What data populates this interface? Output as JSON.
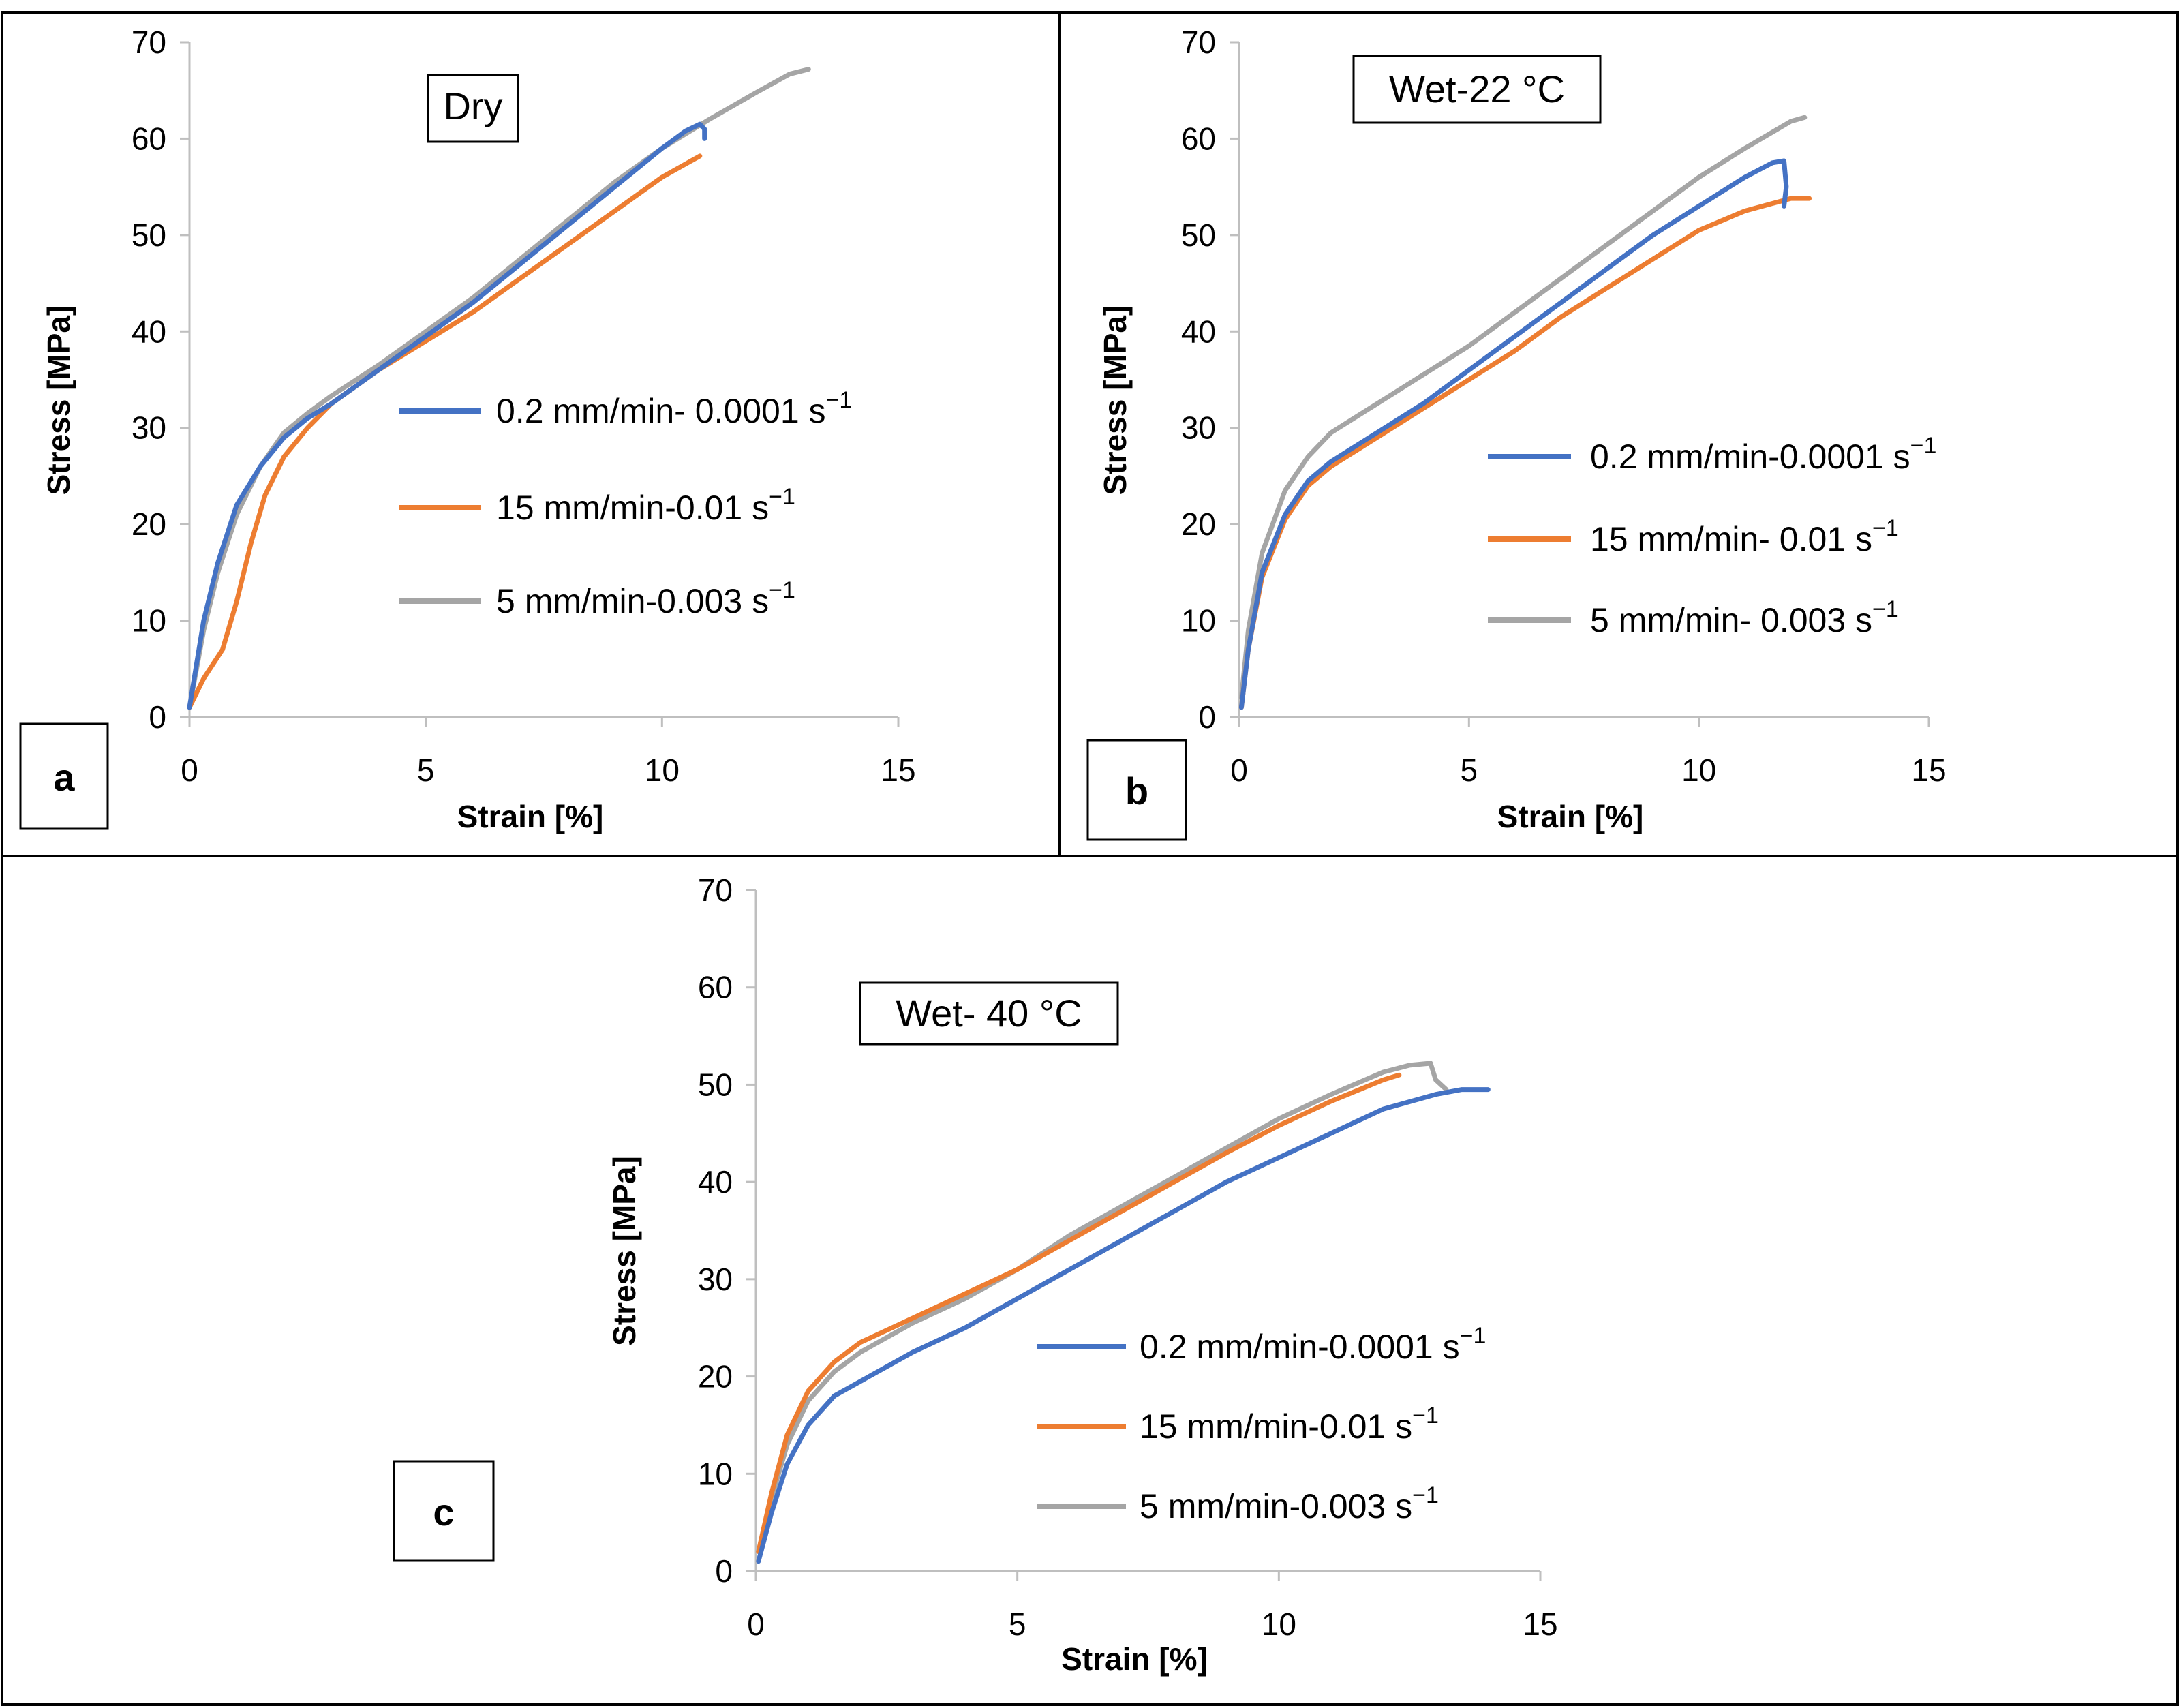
{
  "figure": {
    "panels": [
      {
        "letter": "a",
        "condition": "Dry",
        "legend": [
          {
            "label": "0.2 mm/min- 0.0001 s",
            "sup": "−1"
          },
          {
            "label": "15 mm/min-0.01 s",
            "sup": "−1"
          },
          {
            "label": "5 mm/min-0.003 s",
            "sup": "−1"
          }
        ]
      },
      {
        "letter": "b",
        "condition": "Wet-22 °C",
        "legend": [
          {
            "label": "0.2 mm/min-0.0001 s",
            "sup": "−1"
          },
          {
            "label": "15 mm/min- 0.01 s",
            "sup": "−1"
          },
          {
            "label": "5 mm/min- 0.003 s",
            "sup": "−1"
          }
        ]
      },
      {
        "letter": "c",
        "condition": "Wet- 40 °C",
        "legend": [
          {
            "label": "0.2 mm/min-0.0001 s",
            "sup": "−1"
          },
          {
            "label": "15 mm/min-0.01 s",
            "sup": "−1"
          },
          {
            "label": "5 mm/min-0.003 s",
            "sup": "−1"
          }
        ]
      }
    ]
  },
  "colors": {
    "blue": "#4472C4",
    "orange": "#ED7D31",
    "gray": "#A5A5A5"
  },
  "chart_data": [
    {
      "type": "line",
      "title": "Dry",
      "xlabel": "Strain [%]",
      "ylabel": "Stress [MPa]",
      "xlim": [
        0,
        15
      ],
      "ylim": [
        0,
        70
      ],
      "xticks": [
        0,
        5,
        10,
        15
      ],
      "yticks": [
        0,
        10,
        20,
        30,
        40,
        50,
        60,
        70
      ],
      "series": [
        {
          "name": "0.2 mm/min- 0.0001 s−1",
          "color": "#4472C4",
          "x": [
            0,
            0.3,
            0.6,
            1.0,
            1.5,
            2.0,
            2.5,
            3.0,
            4.0,
            5.0,
            6.0,
            7.0,
            8.0,
            9.0,
            10.0,
            10.5,
            10.8,
            10.9,
            10.9
          ],
          "y": [
            1,
            10,
            16,
            22,
            26,
            29,
            31,
            32.5,
            36,
            39.5,
            43,
            47,
            51,
            55,
            59,
            60.8,
            61.5,
            61,
            60
          ]
        },
        {
          "name": "15 mm/min-0.01 s−1",
          "color": "#ED7D31",
          "x": [
            0,
            0.3,
            0.7,
            1.0,
            1.3,
            1.6,
            2.0,
            2.5,
            3.0,
            4.0,
            5.0,
            6.0,
            7.0,
            8.0,
            9.0,
            10.0,
            10.8
          ],
          "y": [
            1,
            4,
            7,
            12,
            18,
            23,
            27,
            30,
            32.5,
            36,
            39,
            42,
            45.5,
            49,
            52.5,
            56,
            58.2
          ]
        },
        {
          "name": "5 mm/min-0.003 s−1",
          "color": "#A5A5A5",
          "x": [
            0,
            0.3,
            0.6,
            1.0,
            1.5,
            2.0,
            2.5,
            3.0,
            4.0,
            5.0,
            6.0,
            7.0,
            8.0,
            9.0,
            10.0,
            11.0,
            12.0,
            12.7,
            13.1
          ],
          "y": [
            1,
            9,
            15,
            21,
            26,
            29.5,
            31.5,
            33.3,
            36.5,
            40,
            43.5,
            47.5,
            51.5,
            55.5,
            59,
            62,
            64.8,
            66.7,
            67.2
          ]
        }
      ]
    },
    {
      "type": "line",
      "title": "Wet-22 °C",
      "xlabel": "Strain [%]",
      "ylabel": "Stress [MPa]",
      "xlim": [
        0,
        15
      ],
      "ylim": [
        0,
        70
      ],
      "xticks": [
        0,
        5,
        10,
        15
      ],
      "yticks": [
        0,
        10,
        20,
        30,
        40,
        50,
        60,
        70
      ],
      "series": [
        {
          "name": "0.2 mm/min-0.0001 s−1",
          "color": "#4472C4",
          "x": [
            0.05,
            0.2,
            0.5,
            1.0,
            1.5,
            2.0,
            3.0,
            4.0,
            5.0,
            6.0,
            7.0,
            8.0,
            9.0,
            10.0,
            11.0,
            11.6,
            11.85,
            11.9,
            11.85
          ],
          "y": [
            1,
            7,
            15,
            21,
            24.5,
            26.5,
            29.5,
            32.5,
            36,
            39.5,
            43,
            46.5,
            50,
            53,
            56,
            57.5,
            57.7,
            55,
            53
          ]
        },
        {
          "name": "15 mm/min- 0.01 s−1",
          "color": "#ED7D31",
          "x": [
            0.05,
            0.2,
            0.5,
            1.0,
            1.5,
            2.0,
            3.0,
            4.0,
            5.0,
            6.0,
            7.0,
            8.0,
            9.0,
            10.0,
            11.0,
            12.0,
            12.4
          ],
          "y": [
            1,
            7,
            14.5,
            20.5,
            24,
            26,
            29,
            32,
            35,
            38,
            41.5,
            44.5,
            47.5,
            50.5,
            52.5,
            53.8,
            53.8
          ]
        },
        {
          "name": "5 mm/min- 0.003 s−1",
          "color": "#A5A5A5",
          "x": [
            0.05,
            0.2,
            0.5,
            1.0,
            1.5,
            2.0,
            3.0,
            4.0,
            5.0,
            6.0,
            7.0,
            8.0,
            9.0,
            10.0,
            11.0,
            12.0,
            12.3
          ],
          "y": [
            2,
            9,
            17,
            23.5,
            27,
            29.5,
            32.5,
            35.5,
            38.5,
            42,
            45.5,
            49,
            52.5,
            56,
            59,
            61.8,
            62.2
          ]
        }
      ]
    },
    {
      "type": "line",
      "title": "Wet- 40 °C",
      "xlabel": "Strain [%]",
      "ylabel": "Stress [MPa]",
      "xlim": [
        0,
        15
      ],
      "ylim": [
        0,
        70
      ],
      "xticks": [
        0,
        5,
        10,
        15
      ],
      "yticks": [
        0,
        10,
        20,
        30,
        40,
        50,
        60,
        70
      ],
      "series": [
        {
          "name": "0.2 mm/min-0.0001 s−1",
          "color": "#4472C4",
          "x": [
            0.05,
            0.3,
            0.6,
            1.0,
            1.5,
            2.0,
            3.0,
            4.0,
            5.0,
            6.0,
            7.0,
            8.0,
            9.0,
            10.0,
            11.0,
            12.0,
            13.0,
            13.5,
            14.0
          ],
          "y": [
            1,
            6,
            11,
            15,
            18,
            19.5,
            22.5,
            25,
            28,
            31,
            34,
            37,
            40,
            42.5,
            45,
            47.5,
            49,
            49.5,
            49.5
          ]
        },
        {
          "name": "15 mm/min-0.01 s−1",
          "color": "#ED7D31",
          "x": [
            0.05,
            0.3,
            0.6,
            1.0,
            1.5,
            2.0,
            3.0,
            4.0,
            5.0,
            6.0,
            7.0,
            8.0,
            9.0,
            10.0,
            11.0,
            12.0,
            12.3
          ],
          "y": [
            2,
            8,
            14,
            18.5,
            21.5,
            23.5,
            26,
            28.5,
            31,
            34,
            37,
            40,
            43,
            45.8,
            48.3,
            50.5,
            51
          ]
        },
        {
          "name": "5 mm/min-0.003 s−1",
          "color": "#A5A5A5",
          "x": [
            0.05,
            0.3,
            0.6,
            1.0,
            1.5,
            2.0,
            3.0,
            4.0,
            5.0,
            6.0,
            7.0,
            8.0,
            9.0,
            10.0,
            11.0,
            12.0,
            12.5,
            12.9,
            13.0,
            13.2
          ],
          "y": [
            2,
            7.5,
            13,
            17.5,
            20.5,
            22.5,
            25.5,
            28,
            31,
            34.5,
            37.5,
            40.5,
            43.5,
            46.5,
            49,
            51.3,
            52,
            52.2,
            50.5,
            49.5
          ]
        }
      ]
    }
  ]
}
